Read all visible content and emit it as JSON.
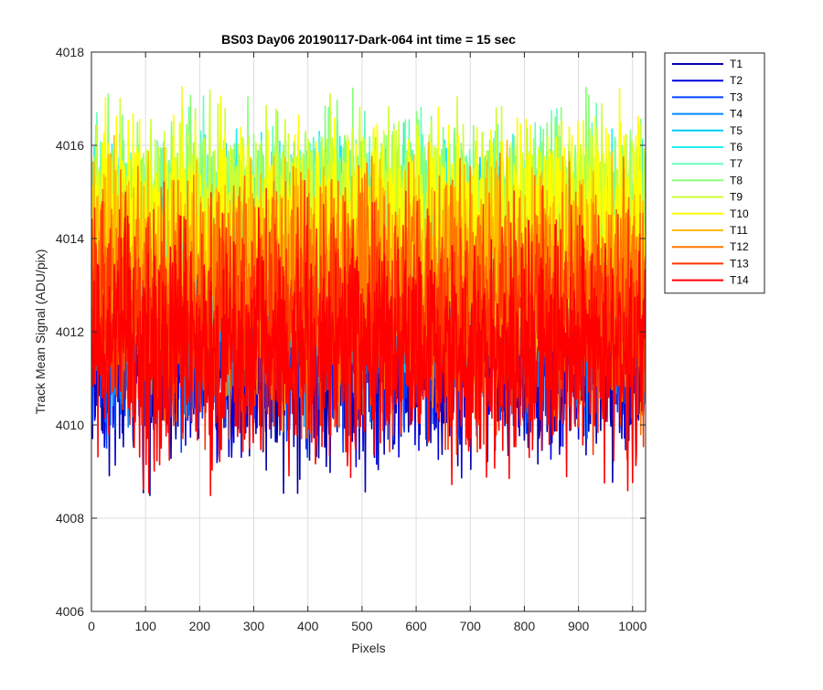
{
  "chart_data": {
    "type": "line",
    "title": "BS03 Day06 20190117-Dark-064 int time = 15 sec",
    "xlabel": "Pixels",
    "ylabel": "Track Mean Signal (ADU/pix)",
    "xlim": [
      0,
      1024
    ],
    "ylim": [
      4006,
      4018
    ],
    "xticks": [
      0,
      100,
      200,
      300,
      400,
      500,
      600,
      700,
      800,
      900,
      1000
    ],
    "yticks": [
      4006,
      4008,
      4010,
      4012,
      4014,
      4016,
      4018
    ],
    "grid": true,
    "legend_position": "outside-top-right",
    "n_pixels": 1024,
    "series": [
      {
        "name": "T1",
        "color": "#0000aa",
        "mean": 4011.6,
        "noise": 1.15
      },
      {
        "name": "T2",
        "color": "#0000e0",
        "mean": 4011.9,
        "noise": 1.15
      },
      {
        "name": "T3",
        "color": "#0044ff",
        "mean": 4012.2,
        "noise": 1.1
      },
      {
        "name": "T4",
        "color": "#0088ff",
        "mean": 4012.6,
        "noise": 1.1
      },
      {
        "name": "T5",
        "color": "#00ccff",
        "mean": 4013.4,
        "noise": 1.05
      },
      {
        "name": "T6",
        "color": "#22eeee",
        "mean": 4014.0,
        "noise": 1.0
      },
      {
        "name": "T7",
        "color": "#66ffbb",
        "mean": 4014.3,
        "noise": 1.0
      },
      {
        "name": "T8",
        "color": "#88ff77",
        "mean": 4014.5,
        "noise": 1.0
      },
      {
        "name": "T9",
        "color": "#ccff33",
        "mean": 4014.6,
        "noise": 1.0
      },
      {
        "name": "T10",
        "color": "#ffff00",
        "mean": 4014.3,
        "noise": 1.05
      },
      {
        "name": "T11",
        "color": "#ffbb00",
        "mean": 4013.4,
        "noise": 1.1
      },
      {
        "name": "T12",
        "color": "#ff7700",
        "mean": 4012.8,
        "noise": 1.15
      },
      {
        "name": "T13",
        "color": "#ff3300",
        "mean": 4012.2,
        "noise": 1.15
      },
      {
        "name": "T14",
        "color": "#ff0000",
        "mean": 4011.6,
        "noise": 1.15
      }
    ]
  }
}
